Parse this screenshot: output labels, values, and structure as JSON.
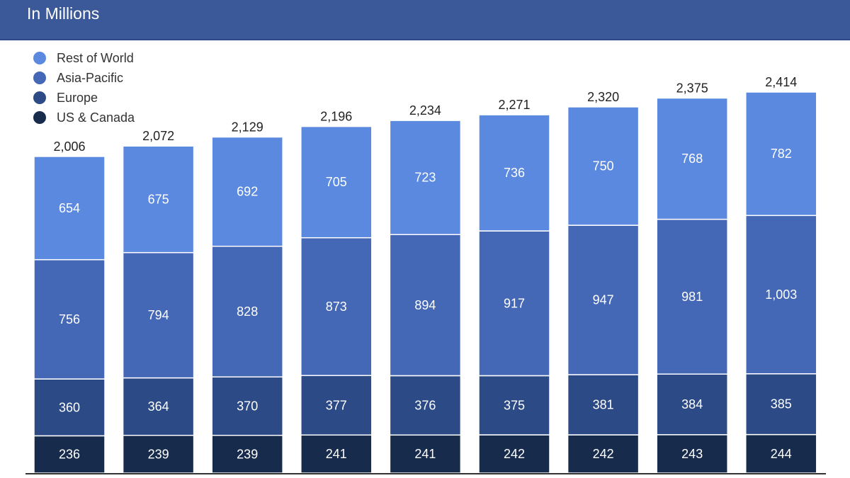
{
  "header": {
    "subtitle": "In Millions"
  },
  "chart_data": {
    "type": "bar",
    "stacked": true,
    "categories": [
      "",
      "",
      "",
      "",
      "",
      "",
      "",
      "",
      ""
    ],
    "series": [
      {
        "name": "US & Canada",
        "color": "#172b4d",
        "values": [
          236,
          239,
          239,
          241,
          241,
          242,
          242,
          243,
          244
        ]
      },
      {
        "name": "Europe",
        "color": "#2c4a86",
        "values": [
          360,
          364,
          370,
          377,
          376,
          375,
          381,
          384,
          385
        ]
      },
      {
        "name": "Asia-Pacific",
        "color": "#4467b6",
        "values": [
          756,
          794,
          828,
          873,
          894,
          917,
          947,
          981,
          1003
        ]
      },
      {
        "name": "Rest of World",
        "color": "#5b89e0",
        "values": [
          654,
          675,
          692,
          705,
          723,
          736,
          750,
          768,
          782
        ]
      }
    ],
    "segment_labels": [
      [
        "236",
        "239",
        "239",
        "241",
        "241",
        "242",
        "242",
        "243",
        "244"
      ],
      [
        "360",
        "364",
        "370",
        "377",
        "376",
        "375",
        "381",
        "384",
        "385"
      ],
      [
        "756",
        "794",
        "828",
        "873",
        "894",
        "917",
        "947",
        "981",
        "1,003"
      ],
      [
        "654",
        "675",
        "692",
        "705",
        "723",
        "736",
        "750",
        "768",
        "782"
      ]
    ],
    "totals": [
      "2,006",
      "2,072",
      "2,129",
      "2,196",
      "2,234",
      "2,271",
      "2,320",
      "2,375",
      "2,414"
    ],
    "legend_order": [
      "Rest of World",
      "Asia-Pacific",
      "Europe",
      "US & Canada"
    ],
    "legend_position": "top-left",
    "ylim": [
      0,
      2414
    ],
    "grid": false
  }
}
